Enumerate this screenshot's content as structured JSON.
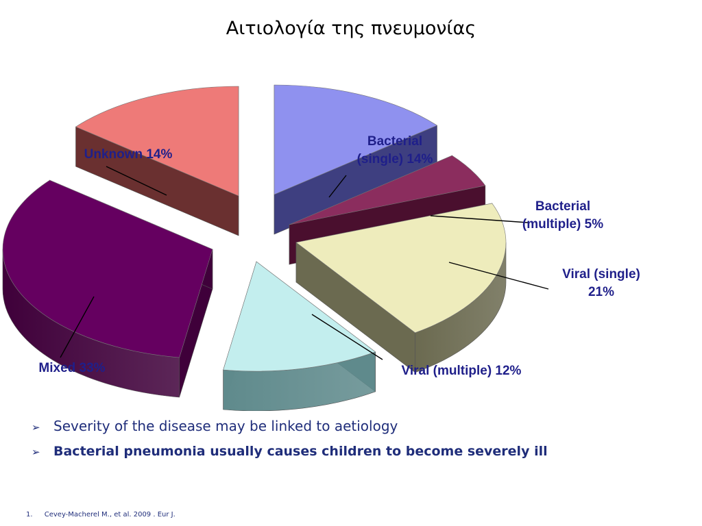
{
  "title": "Αιτιολογία της πνευμονίας",
  "chart_data": {
    "type": "pie",
    "style": "3d-exploded",
    "slices": [
      {
        "name": "Bacterial (single)",
        "value": 14,
        "label_lines": [
          "Bacterial",
          "(single) 14%"
        ],
        "color": "#8f91ef",
        "side_color": "#3e3f80"
      },
      {
        "name": "Bacterial (multiple)",
        "value": 5,
        "label_lines": [
          "Bacterial",
          "(multiple) 5%"
        ],
        "color": "#8b2d5e",
        "side_color": "#4a0f2e"
      },
      {
        "name": "Viral (single)",
        "value": 21,
        "label_lines": [
          "Viral (single)",
          "21%"
        ],
        "color": "#eeecbc",
        "side_color": "#6b6a50"
      },
      {
        "name": "Viral (multiple)",
        "value": 12,
        "label_lines": [
          "Viral (multiple) 12%"
        ],
        "color": "#c3eeee",
        "side_color": "#5f8a8c"
      },
      {
        "name": "Mixed",
        "value": 33,
        "label_lines": [
          "Mixed 33%"
        ],
        "color": "#650060",
        "side_color": "#3f003a"
      },
      {
        "name": "Unknown",
        "value": 14,
        "label_lines": [
          "Unknown 14%"
        ],
        "color": "#ee7a78",
        "side_color": "#6a3030"
      }
    ],
    "label_color": "#1f1f8a"
  },
  "bullets": [
    "Severity of the disease may be linked to aetiology",
    "Bacterial pneumonia usually causes children to become severely ill"
  ],
  "footnote": {
    "number": "1.",
    "text": "Cevey-Macherel M., et al. 2009 . Eur J."
  }
}
